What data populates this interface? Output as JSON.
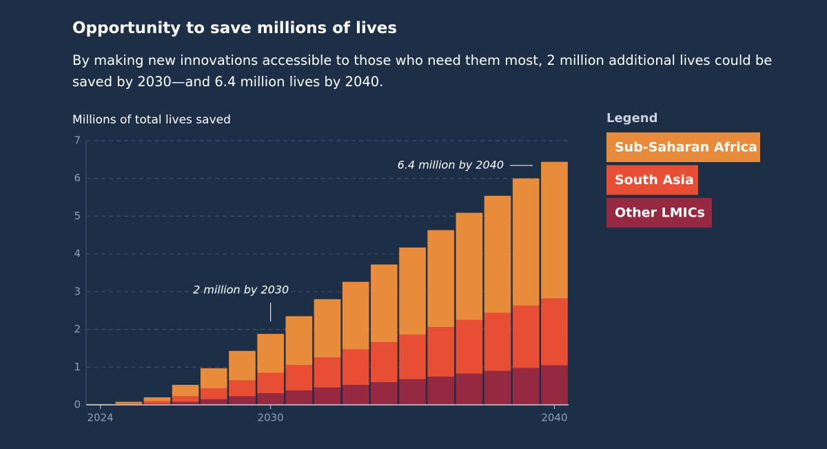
{
  "chart_data": {
    "type": "bar",
    "stacked": true,
    "title": "Opportunity to save millions of lives",
    "subtitle": "By making new innovations accessible to those who need them most, 2 million additional lives could be saved by 2030—and 6.4 million lives by 2040.",
    "y_label": "Millions of total lives saved",
    "legend_title": "Legend",
    "x": [
      2024,
      2025,
      2026,
      2027,
      2028,
      2029,
      2030,
      2031,
      2032,
      2033,
      2034,
      2035,
      2036,
      2037,
      2038,
      2039,
      2040
    ],
    "xlim": [
      2023.5,
      2040.5
    ],
    "xticks": [
      2024,
      2030,
      2040
    ],
    "ylim": [
      0,
      7
    ],
    "yticks": [
      0,
      1,
      2,
      3,
      4,
      5,
      6,
      7
    ],
    "grid": true,
    "series": [
      {
        "name": "Sub-Saharan Africa",
        "color": "#e88b3a",
        "values": [
          0.01,
          0.05,
          0.1,
          0.3,
          0.53,
          0.78,
          1.03,
          1.29,
          1.54,
          1.79,
          2.06,
          2.31,
          2.57,
          2.84,
          3.1,
          3.37,
          3.62
        ]
      },
      {
        "name": "South Asia",
        "color": "#e84e33",
        "values": [
          0.005,
          0.02,
          0.07,
          0.15,
          0.29,
          0.42,
          0.54,
          0.68,
          0.8,
          0.94,
          1.06,
          1.18,
          1.31,
          1.42,
          1.54,
          1.65,
          1.77
        ]
      },
      {
        "name": "Other LMICs",
        "color": "#962942",
        "values": [
          0.005,
          0.01,
          0.03,
          0.08,
          0.15,
          0.23,
          0.31,
          0.38,
          0.46,
          0.53,
          0.6,
          0.68,
          0.75,
          0.83,
          0.9,
          0.98,
          1.05
        ]
      }
    ],
    "annotations": [
      {
        "text": "2 million by 2030",
        "x": 2030,
        "y": 2
      },
      {
        "text": "6.4 million by 2040",
        "x": 2040,
        "y": 6.4
      }
    ]
  }
}
